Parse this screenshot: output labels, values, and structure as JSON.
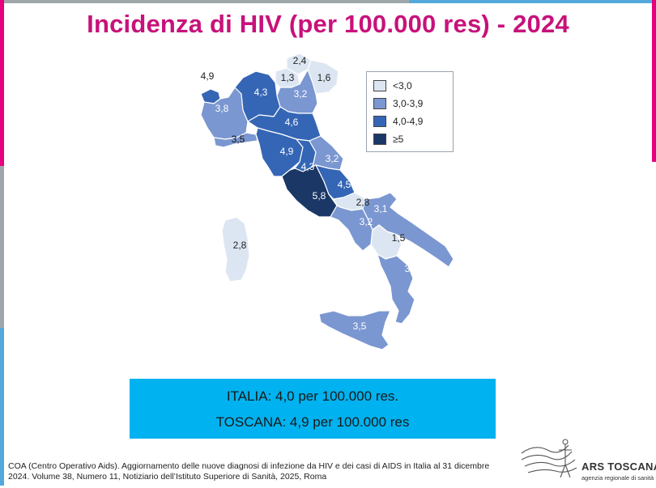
{
  "title": "Incidenza di HIV (per 100.000 res) - 2024",
  "legend": [
    {
      "label": "<3,0",
      "color": "#dce6f2"
    },
    {
      "label": "3,0-3,9",
      "color": "#7b97d1"
    },
    {
      "label": "4,0-4,9",
      "color": "#3566b5"
    },
    {
      "label": "≥5",
      "color": "#1b3766"
    }
  ],
  "regions": [
    {
      "name": "Valle d'Aosta",
      "value": "4,9",
      "class": "4,0-4,9"
    },
    {
      "name": "Piemonte",
      "value": "3,8",
      "class": "3,0-3,9"
    },
    {
      "name": "Lombardia",
      "value": "4,3",
      "class": "4,0-4,9"
    },
    {
      "name": "Trentino-Alto Adige",
      "value": "1,3",
      "class": "<3,0"
    },
    {
      "name": "Alto Adige",
      "value": "2,4",
      "class": "<3,0"
    },
    {
      "name": "Veneto",
      "value": "3,2",
      "class": "3,0-3,9"
    },
    {
      "name": "Friuli-Venezia Giulia",
      "value": "1,6",
      "class": "<3,0"
    },
    {
      "name": "Liguria",
      "value": "3,5",
      "class": "3,0-3,9"
    },
    {
      "name": "Emilia-Romagna",
      "value": "4,6",
      "class": "4,0-4,9"
    },
    {
      "name": "Toscana",
      "value": "4,9",
      "class": "4,0-4,9"
    },
    {
      "name": "Umbria",
      "value": "4,3",
      "class": "4,0-4,9"
    },
    {
      "name": "Marche",
      "value": "3,2",
      "class": "3,0-3,9"
    },
    {
      "name": "Lazio",
      "value": "5,8",
      "class": "≥5"
    },
    {
      "name": "Abruzzo",
      "value": "4,5",
      "class": "4,0-4,9"
    },
    {
      "name": "Molise",
      "value": "2,8",
      "class": "<3,0"
    },
    {
      "name": "Campania",
      "value": "3,2",
      "class": "3,0-3,9"
    },
    {
      "name": "Puglia",
      "value": "3,1",
      "class": "3,0-3,9"
    },
    {
      "name": "Basilicata",
      "value": "1,5",
      "class": "<3,0"
    },
    {
      "name": "Calabria",
      "value": "3,8",
      "class": "3,0-3,9"
    },
    {
      "name": "Sicilia",
      "value": "3,5",
      "class": "3,0-3,9"
    },
    {
      "name": "Sardegna",
      "value": "2,8",
      "class": "<3,0"
    }
  ],
  "summary": {
    "italia": "ITALIA: 4,0 per 100.000 res.",
    "toscana": "TOSCANA: 4,9 per 100.000 res"
  },
  "source": "COA (Centro Operativo Aids). Aggiornamento delle nuove diagnosi di infezione da HIV e dei casi di AIDS in Italia al 31 dicembre 2024. Volume 38, Numero 11, Notiziario dell’Istituto Superiore di Sanità, 2025, Roma",
  "logo": {
    "name": "ARS TOSCANA",
    "subtitle": "agenzia regionale di sanità"
  }
}
